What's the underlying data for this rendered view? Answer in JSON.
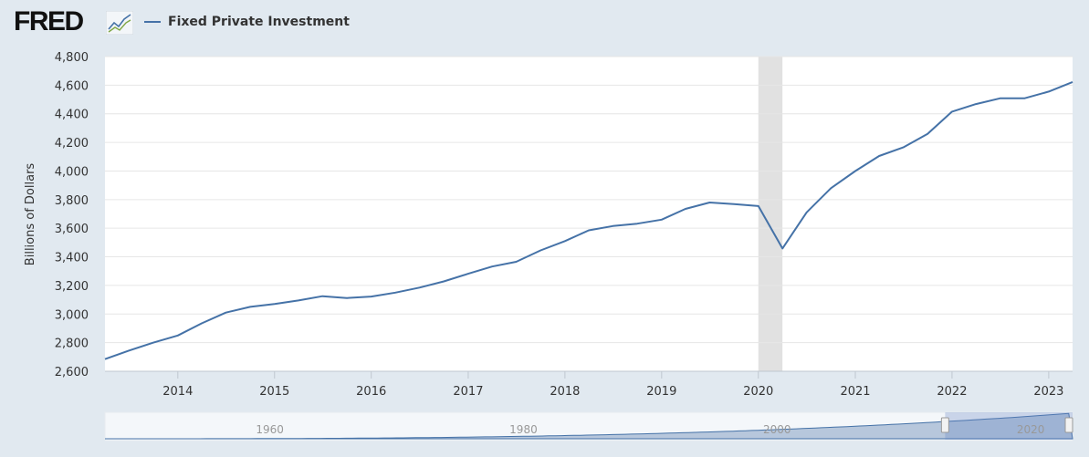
{
  "logo": {
    "text": "FRED",
    "icon": "fred-chart-icon"
  },
  "chart_data": {
    "type": "line",
    "title": "",
    "xlabel": "",
    "ylabel": "Billions of Dollars",
    "ylim": [
      2600,
      4800
    ],
    "yticks": [
      2600,
      2800,
      3000,
      3200,
      3400,
      3600,
      3800,
      4000,
      4200,
      4400,
      4600,
      4800
    ],
    "ytick_labels": [
      "2,600",
      "2,800",
      "3,000",
      "3,200",
      "3,400",
      "3,600",
      "3,800",
      "4,000",
      "4,200",
      "4,400",
      "4,600",
      "4,800"
    ],
    "xlim": [
      "2013-04-01",
      "2023-04-01"
    ],
    "xtick_labels": [
      "2014",
      "2015",
      "2016",
      "2017",
      "2018",
      "2019",
      "2020",
      "2021",
      "2022",
      "2023"
    ],
    "grid": true,
    "legend_position": "top-left",
    "series": [
      {
        "name": "Fixed Private Investment",
        "color": "#4572a7",
        "x": [
          "2013-04-01",
          "2013-07-01",
          "2013-10-01",
          "2014-01-01",
          "2014-04-01",
          "2014-07-01",
          "2014-10-01",
          "2015-01-01",
          "2015-04-01",
          "2015-07-01",
          "2015-10-01",
          "2016-01-01",
          "2016-04-01",
          "2016-07-01",
          "2016-10-01",
          "2017-01-01",
          "2017-04-01",
          "2017-07-01",
          "2017-10-01",
          "2018-01-01",
          "2018-04-01",
          "2018-07-01",
          "2018-10-01",
          "2019-01-01",
          "2019-04-01",
          "2019-07-01",
          "2019-10-01",
          "2020-01-01",
          "2020-04-01",
          "2020-07-01",
          "2020-10-01",
          "2021-01-01",
          "2021-04-01",
          "2021-07-01",
          "2021-10-01",
          "2022-01-01",
          "2022-04-01",
          "2022-07-01",
          "2022-10-01",
          "2023-01-01",
          "2023-04-01"
        ],
        "values": [
          2685,
          2745,
          2800,
          2850,
          2935,
          3010,
          3050,
          3070,
          3095,
          3125,
          3112,
          3122,
          3150,
          3185,
          3228,
          3282,
          3332,
          3365,
          3445,
          3510,
          3585,
          3615,
          3632,
          3660,
          3735,
          3780,
          3768,
          3755,
          3458,
          3710,
          3880,
          4000,
          4105,
          4165,
          4260,
          4415,
          4468,
          4508,
          4508,
          4555,
          4622
        ]
      }
    ],
    "recessions": [
      {
        "start": "2020-01-01",
        "end": "2020-04-01"
      }
    ],
    "navigator": {
      "xtick_labels": [
        "1960",
        "1980",
        "2000",
        "2020"
      ],
      "color": "#4572a7"
    }
  }
}
